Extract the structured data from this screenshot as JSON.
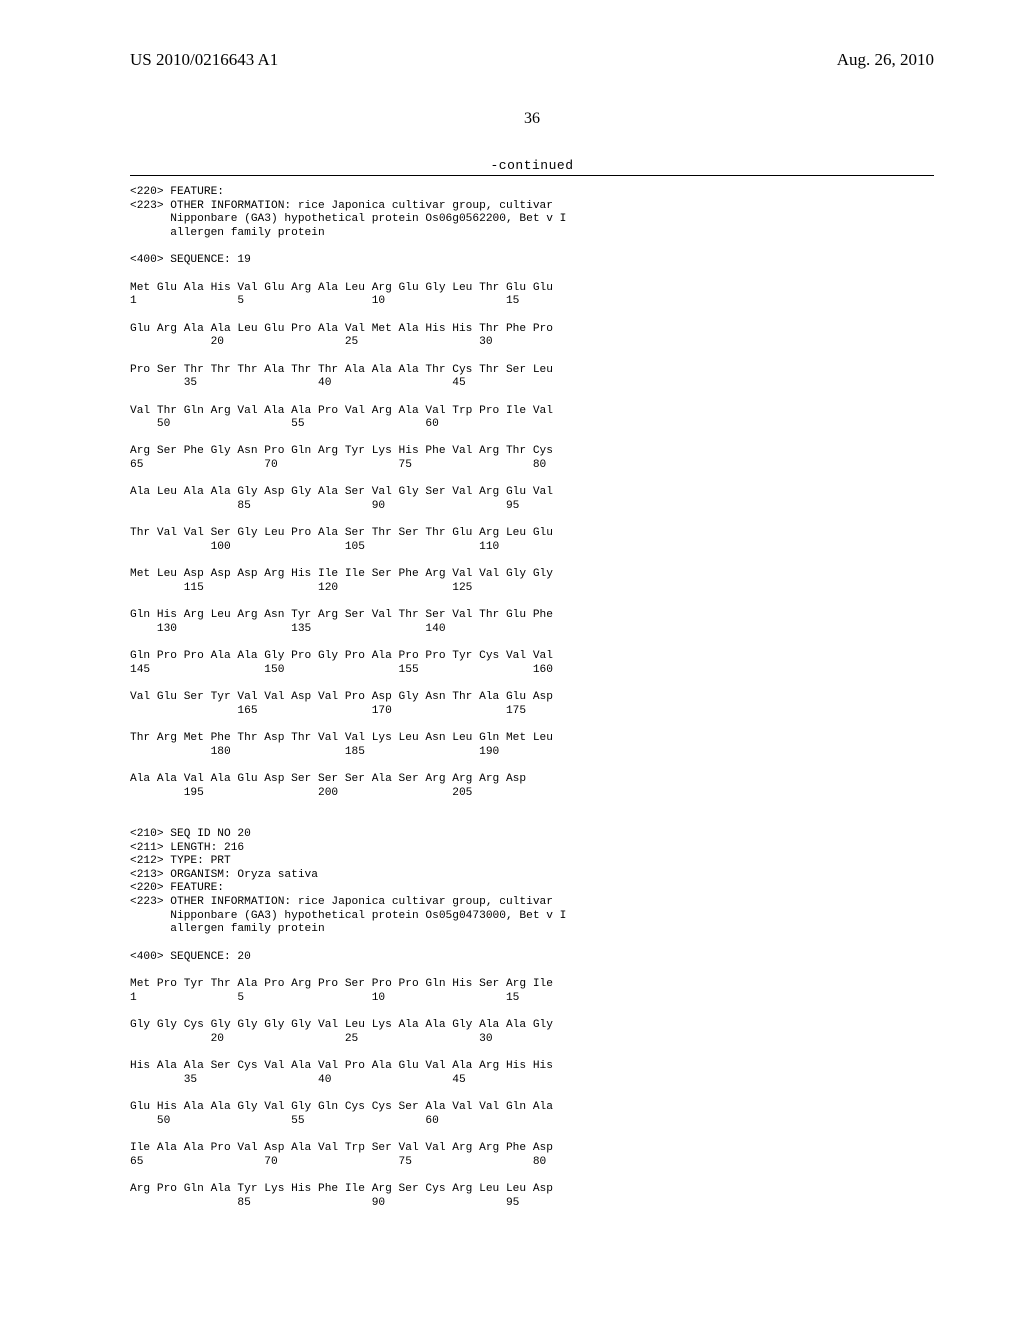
{
  "header": {
    "publication_number": "US 2010/0216643 A1",
    "date": "Aug. 26, 2010"
  },
  "page_number": "36",
  "continued_label": "-continued",
  "seq19": {
    "feature_lines": [
      "<220> FEATURE:",
      "<223> OTHER INFORMATION: rice Japonica cultivar group, cultivar",
      "      Nipponbare (GA3) hypothetical protein Os06g0562200, Bet v I",
      "      allergen family protein"
    ],
    "sequence_label": "<400> SEQUENCE: 19",
    "rows": [
      {
        "aa": "Met Glu Ala His Val Glu Arg Ala Leu Arg Glu Gly Leu Thr Glu Glu",
        "nm": "1               5                   10                  15"
      },
      {
        "aa": "Glu Arg Ala Ala Leu Glu Pro Ala Val Met Ala His His Thr Phe Pro",
        "nm": "            20                  25                  30"
      },
      {
        "aa": "Pro Ser Thr Thr Thr Ala Thr Thr Ala Ala Ala Thr Cys Thr Ser Leu",
        "nm": "        35                  40                  45"
      },
      {
        "aa": "Val Thr Gln Arg Val Ala Ala Pro Val Arg Ala Val Trp Pro Ile Val",
        "nm": "    50                  55                  60"
      },
      {
        "aa": "Arg Ser Phe Gly Asn Pro Gln Arg Tyr Lys His Phe Val Arg Thr Cys",
        "nm": "65                  70                  75                  80"
      },
      {
        "aa": "Ala Leu Ala Ala Gly Asp Gly Ala Ser Val Gly Ser Val Arg Glu Val",
        "nm": "                85                  90                  95"
      },
      {
        "aa": "Thr Val Val Ser Gly Leu Pro Ala Ser Thr Ser Thr Glu Arg Leu Glu",
        "nm": "            100                 105                 110"
      },
      {
        "aa": "Met Leu Asp Asp Asp Arg His Ile Ile Ser Phe Arg Val Val Gly Gly",
        "nm": "        115                 120                 125"
      },
      {
        "aa": "Gln His Arg Leu Arg Asn Tyr Arg Ser Val Thr Ser Val Thr Glu Phe",
        "nm": "    130                 135                 140"
      },
      {
        "aa": "Gln Pro Pro Ala Ala Gly Pro Gly Pro Ala Pro Pro Tyr Cys Val Val",
        "nm": "145                 150                 155                 160"
      },
      {
        "aa": "Val Glu Ser Tyr Val Val Asp Val Pro Asp Gly Asn Thr Ala Glu Asp",
        "nm": "                165                 170                 175"
      },
      {
        "aa": "Thr Arg Met Phe Thr Asp Thr Val Val Lys Leu Asn Leu Gln Met Leu",
        "nm": "            180                 185                 190"
      },
      {
        "aa": "Ala Ala Val Ala Glu Asp Ser Ser Ser Ala Ser Arg Arg Arg Asp",
        "nm": "        195                 200                 205"
      }
    ]
  },
  "seq20": {
    "feature_lines": [
      "<210> SEQ ID NO 20",
      "<211> LENGTH: 216",
      "<212> TYPE: PRT",
      "<213> ORGANISM: Oryza sativa",
      "<220> FEATURE:",
      "<223> OTHER INFORMATION: rice Japonica cultivar group, cultivar",
      "      Nipponbare (GA3) hypothetical protein Os05g0473000, Bet v I",
      "      allergen family protein"
    ],
    "sequence_label": "<400> SEQUENCE: 20",
    "rows": [
      {
        "aa": "Met Pro Tyr Thr Ala Pro Arg Pro Ser Pro Pro Gln His Ser Arg Ile",
        "nm": "1               5                   10                  15"
      },
      {
        "aa": "Gly Gly Cys Gly Gly Gly Gly Val Leu Lys Ala Ala Gly Ala Ala Gly",
        "nm": "            20                  25                  30"
      },
      {
        "aa": "His Ala Ala Ser Cys Val Ala Val Pro Ala Glu Val Ala Arg His His",
        "nm": "        35                  40                  45"
      },
      {
        "aa": "Glu His Ala Ala Gly Val Gly Gln Cys Cys Ser Ala Val Val Gln Ala",
        "nm": "    50                  55                  60"
      },
      {
        "aa": "Ile Ala Ala Pro Val Asp Ala Val Trp Ser Val Val Arg Arg Phe Asp",
        "nm": "65                  70                  75                  80"
      },
      {
        "aa": "Arg Pro Gln Ala Tyr Lys His Phe Ile Arg Ser Cys Arg Leu Leu Asp",
        "nm": "                85                  90                  95"
      }
    ]
  }
}
